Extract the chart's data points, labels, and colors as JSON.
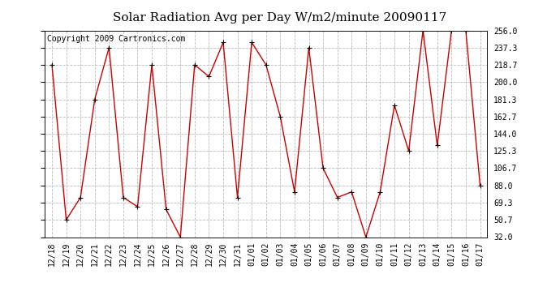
{
  "title": "Solar Radiation Avg per Day W/m2/minute 20090117",
  "copyright": "Copyright 2009 Cartronics.com",
  "x_labels": [
    "12/18",
    "12/19",
    "12/20",
    "12/21",
    "12/22",
    "12/23",
    "12/24",
    "12/25",
    "12/26",
    "12/27",
    "12/28",
    "12/29",
    "12/30",
    "12/31",
    "01/01",
    "01/02",
    "01/03",
    "01/04",
    "01/05",
    "01/06",
    "01/07",
    "01/08",
    "01/09",
    "01/10",
    "01/11",
    "01/12",
    "01/13",
    "01/14",
    "01/15",
    "01/16",
    "01/17"
  ],
  "y_values": [
    218.7,
    50.7,
    75.0,
    181.3,
    237.3,
    75.0,
    65.0,
    218.7,
    62.0,
    32.0,
    218.7,
    206.0,
    243.0,
    75.0,
    243.0,
    218.7,
    162.7,
    81.0,
    237.3,
    106.7,
    75.0,
    81.0,
    32.0,
    81.0,
    175.0,
    125.3,
    256.0,
    131.3,
    256.0,
    256.0,
    88.0
  ],
  "line_color": "#cc0000",
  "marker_color": "#000000",
  "bg_color": "#ffffff",
  "grid_color": "#bbbbbb",
  "yticks": [
    32.0,
    50.7,
    69.3,
    88.0,
    106.7,
    125.3,
    144.0,
    162.7,
    181.3,
    200.0,
    218.7,
    237.3,
    256.0
  ],
  "ylim": [
    32.0,
    256.0
  ],
  "title_fontsize": 11,
  "label_fontsize": 7,
  "copyright_fontsize": 7
}
